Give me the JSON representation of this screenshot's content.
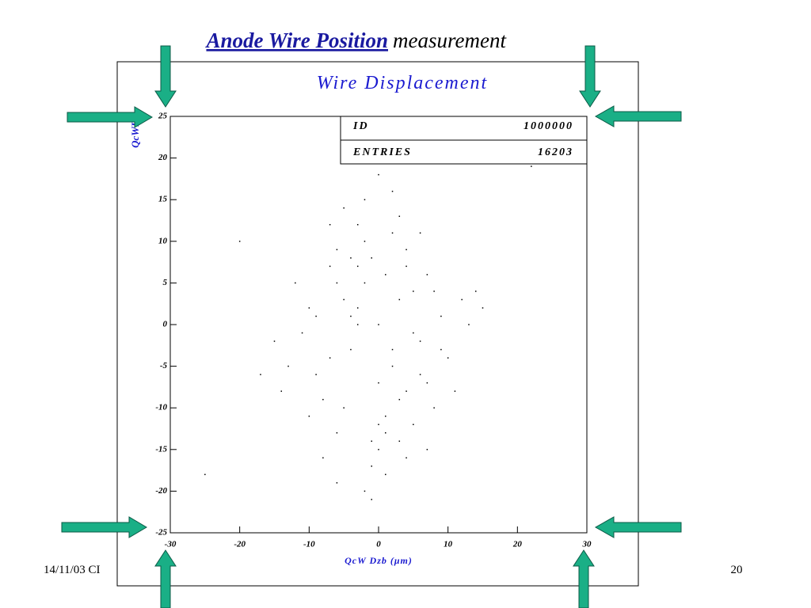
{
  "slide": {
    "title_main": "Anode Wire Position",
    "title_rest": "measurement",
    "footer_left": "14/11/03 CI",
    "footer_right": "20"
  },
  "chart_data": {
    "type": "scatter",
    "title": "Wire Displacement",
    "x_label": "QcW Dzb (μm)",
    "y_label": "QcWDy",
    "stats": [
      {
        "label": "ID",
        "value": 1000000
      },
      {
        "label": "ENTRIES",
        "value": 16203
      }
    ],
    "color": "#000000",
    "xlim": [
      -30,
      30
    ],
    "xticks": [
      -30,
      -20,
      -10,
      0,
      10,
      20,
      30
    ],
    "ylim": [
      -25,
      25
    ],
    "yticks": [
      -25,
      -20,
      -15,
      -10,
      -5,
      0,
      5,
      10,
      15,
      20,
      25
    ],
    "x": [
      -3,
      2,
      -6,
      5,
      0,
      -9,
      8,
      -1,
      4,
      -4,
      1,
      -7,
      6,
      -2,
      3,
      -5,
      7,
      -10,
      9,
      0,
      -3,
      2,
      -8,
      4,
      -1,
      5,
      -6,
      1,
      -4,
      3,
      -2,
      6,
      -11,
      10,
      -5,
      0,
      2,
      -7,
      8,
      -3,
      12,
      -13,
      -1,
      4,
      -6,
      3,
      -9,
      7,
      -2,
      1,
      -15,
      14,
      -4,
      5,
      -8,
      0,
      6,
      -12,
      11,
      -2,
      3,
      -5,
      -17,
      15,
      -20,
      -1,
      2,
      -6,
      9,
      -10,
      4,
      0,
      -14,
      13,
      -3,
      7,
      -7,
      1,
      -25,
      22
    ],
    "y": [
      2,
      -3,
      5,
      -1,
      0,
      -6,
      4,
      8,
      -8,
      1,
      6,
      -4,
      -2,
      10,
      3,
      -10,
      -7,
      2,
      1,
      -12,
      12,
      -5,
      -9,
      7,
      -14,
      4,
      9,
      -11,
      -3,
      13,
      5,
      -6,
      -1,
      -4,
      3,
      -15,
      11,
      7,
      -10,
      0,
      3,
      -5,
      -17,
      9,
      -13,
      -9,
      1,
      6,
      15,
      -18,
      -2,
      4,
      8,
      -12,
      -16,
      -7,
      11,
      5,
      -8,
      -20,
      -14,
      14,
      -6,
      2,
      10,
      -21,
      16,
      -19,
      -3,
      -11,
      -16,
      18,
      -8,
      0,
      7,
      -15,
      12,
      -13,
      -18,
      19
    ]
  }
}
